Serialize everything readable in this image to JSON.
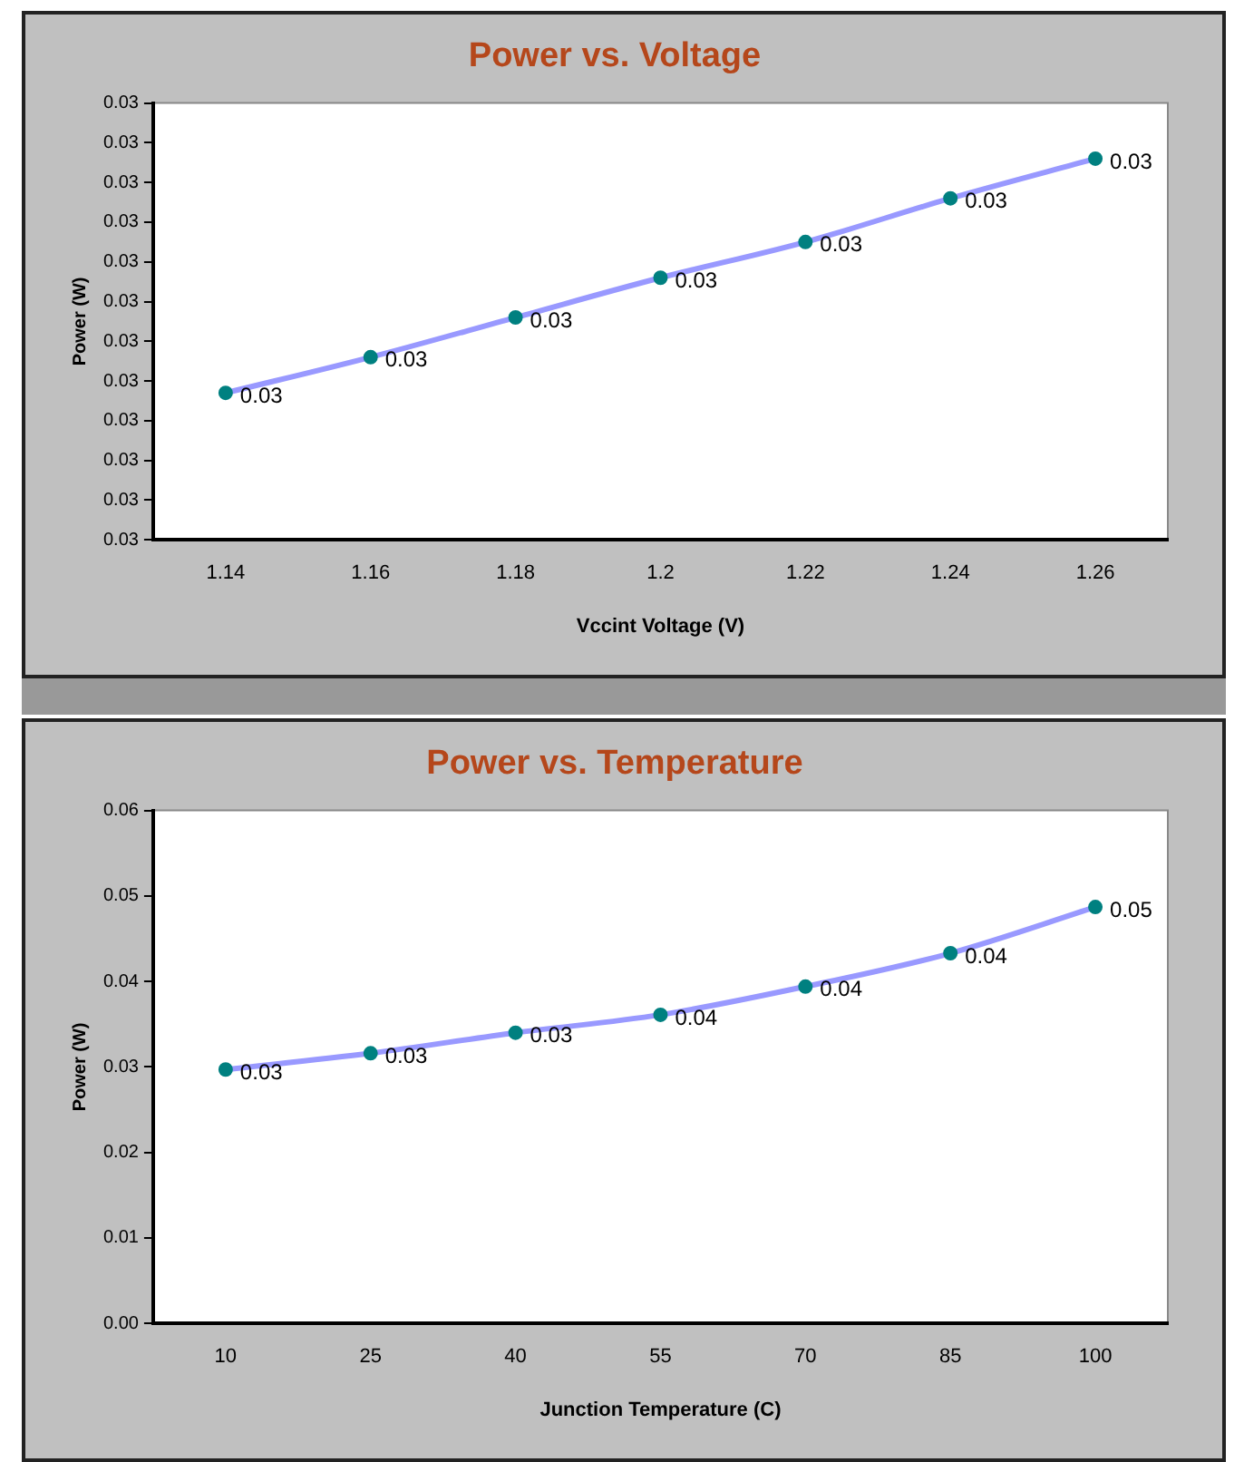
{
  "chart_data": [
    {
      "type": "line",
      "title": "Power vs. Voltage",
      "xlabel": "Vccint Voltage (V)",
      "ylabel": "Power (W)",
      "categories": [
        "1.14",
        "1.16",
        "1.18",
        "1.2",
        "1.22",
        "1.24",
        "1.26"
      ],
      "series": [
        {
          "color": "#9999ff",
          "values": [
            0.02937,
            0.02946,
            0.02956,
            0.02966,
            0.02975,
            0.02986,
            0.02996
          ],
          "value_labels": [
            "0.03",
            "0.03",
            "0.03",
            "0.03",
            "0.03",
            "0.03",
            "0.03"
          ]
        }
      ],
      "ylim": [
        0.029,
        0.0301
      ],
      "yticks": [
        {
          "value": 0.029,
          "label": "0.03"
        },
        {
          "value": 0.0291,
          "label": "0.03"
        },
        {
          "value": 0.0292,
          "label": "0.03"
        },
        {
          "value": 0.0293,
          "label": "0.03"
        },
        {
          "value": 0.0294,
          "label": "0.03"
        },
        {
          "value": 0.0295,
          "label": "0.03"
        },
        {
          "value": 0.0296,
          "label": "0.03"
        },
        {
          "value": 0.0297,
          "label": "0.03"
        },
        {
          "value": 0.0298,
          "label": "0.03"
        },
        {
          "value": 0.0299,
          "label": "0.03"
        },
        {
          "value": 0.03,
          "label": "0.03"
        },
        {
          "value": 0.0301,
          "label": "0.03"
        }
      ],
      "grid": false,
      "legend": false,
      "marker": "circle",
      "line_style": "solid"
    },
    {
      "type": "line",
      "title": "Power vs. Temperature",
      "xlabel": "Junction Temperature (C)",
      "ylabel": "Power (W)",
      "categories": [
        "10",
        "25",
        "40",
        "55",
        "70",
        "85",
        "100"
      ],
      "series": [
        {
          "color": "#9999ff",
          "values": [
            0.0297,
            0.0316,
            0.034,
            0.0361,
            0.0394,
            0.0433,
            0.0487
          ],
          "value_labels": [
            "0.03",
            "0.03",
            "0.03",
            "0.04",
            "0.04",
            "0.04",
            "0.05"
          ]
        }
      ],
      "ylim": [
        0,
        0.06
      ],
      "yticks": [
        {
          "value": 0,
          "label": "0.00"
        },
        {
          "value": 0.01,
          "label": "0.01"
        },
        {
          "value": 0.02,
          "label": "0.02"
        },
        {
          "value": 0.03,
          "label": "0.03"
        },
        {
          "value": 0.04,
          "label": "0.04"
        },
        {
          "value": 0.05,
          "label": "0.05"
        },
        {
          "value": 0.06,
          "label": "0.06"
        }
      ],
      "grid": false,
      "legend": false,
      "marker": "circle",
      "line_style": "solid"
    }
  ]
}
